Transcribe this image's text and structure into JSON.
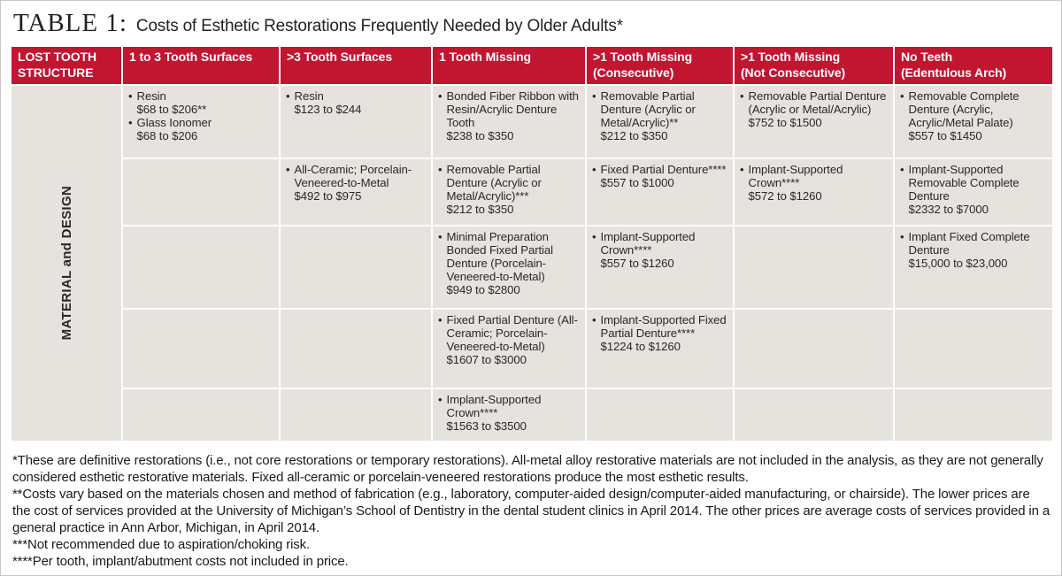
{
  "title": {
    "label": "TABLE 1:",
    "text": "Costs of Esthetic Restorations Frequently Needed by Older Adults*"
  },
  "colors": {
    "header_red": "#C11530",
    "cell_gray": "#E6E3DE",
    "header_text": "#FFFFFF",
    "body_text": "#2B2825"
  },
  "table": {
    "columns": [
      "LOST TOOTH\nSTRUCTURE",
      "1 to 3 Tooth Surfaces",
      ">3 Tooth Surfaces",
      "1 Tooth Missing",
      ">1 Tooth Missing\n(Consecutive)",
      ">1 Tooth Missing\n(Not Consecutive)",
      "No Teeth\n(Edentulous Arch)"
    ],
    "row_label": "MATERIAL and DESIGN",
    "bullet": "•",
    "rows": [
      {
        "cells": [
          [
            {
              "name": "Resin",
              "price": "$68 to $206**"
            },
            {
              "name": "Glass Ionomer",
              "price": "$68 to $206"
            }
          ],
          [
            {
              "name": "Resin",
              "price": "$123 to $244"
            }
          ],
          [
            {
              "name": "Bonded Fiber Ribbon with Resin/Acrylic Denture Tooth",
              "price": "$238 to $350"
            }
          ],
          [
            {
              "name": "Removable Partial Denture (Acrylic or Metal/Acrylic)**",
              "price": "$212 to $350"
            }
          ],
          [
            {
              "name": "Removable Partial Denture (Acrylic or Metal/Acrylic)",
              "price": "$752 to $1500"
            }
          ],
          [
            {
              "name": "Removable Complete Denture (Acrylic, Acrylic/Metal Palate)",
              "price": "$557 to $1450"
            }
          ]
        ]
      },
      {
        "cells": [
          [],
          [
            {
              "name": "All-Ceramic; Porcelain-Veneered-to-Metal",
              "price": "$492 to $975"
            }
          ],
          [
            {
              "name": "Removable Partial Denture (Acrylic or Metal/Acrylic)***",
              "price": "$212 to $350"
            }
          ],
          [
            {
              "name": "Fixed Partial Denture****",
              "price": "$557 to $1000"
            }
          ],
          [
            {
              "name": "Implant-Supported Crown****",
              "price": "$572 to $1260"
            }
          ],
          [
            {
              "name": "Implant-Supported Removable Complete Denture",
              "price": "$2332 to $7000"
            }
          ]
        ]
      },
      {
        "cells": [
          [],
          [],
          [
            {
              "name": "Minimal Preparation Bonded Fixed Partial Denture (Porcelain-Veneered-to-Metal)",
              "price": "$949 to $2800"
            }
          ],
          [
            {
              "name": "Implant-Supported Crown****",
              "price": "$557 to $1260"
            }
          ],
          [],
          [
            {
              "name": "Implant Fixed Complete Denture",
              "price": "$15,000 to $23,000"
            }
          ]
        ]
      },
      {
        "cells": [
          [],
          [],
          [
            {
              "name": "Fixed Partial Denture (All-Ceramic; Porcelain-Veneered-to-Metal)",
              "price": "$1607 to $3000"
            }
          ],
          [
            {
              "name": "Implant-Supported Fixed Partial Denture****",
              "price": "$1224 to $1260"
            }
          ],
          [],
          []
        ]
      },
      {
        "cells": [
          [],
          [],
          [
            {
              "name": "Implant-Supported Crown****",
              "price": "$1563 to $3500"
            }
          ],
          [],
          [],
          []
        ]
      }
    ]
  },
  "footnotes": [
    "*These are definitive restorations (i.e., not core restorations or temporary restorations). All-metal alloy restorative materials are not included in the analysis, as they are not generally considered esthetic restorative materials. Fixed all-ceramic or porcelain-veneered restorations produce the most esthetic results.",
    "**Costs vary based on the materials chosen and method of fabrication (e.g., laboratory, computer-aided design/computer-aided manufacturing, or chairside). The lower prices are the cost of services provided at the University of Michigan’s School of Dentistry in the dental student clinics in April 2014. The other prices are average costs of services provided in a general practice in Ann Arbor, Michigan, in April 2014.",
    "***Not recommended due to aspiration/choking risk.",
    "****Per tooth, implant/abutment costs not included in price."
  ]
}
